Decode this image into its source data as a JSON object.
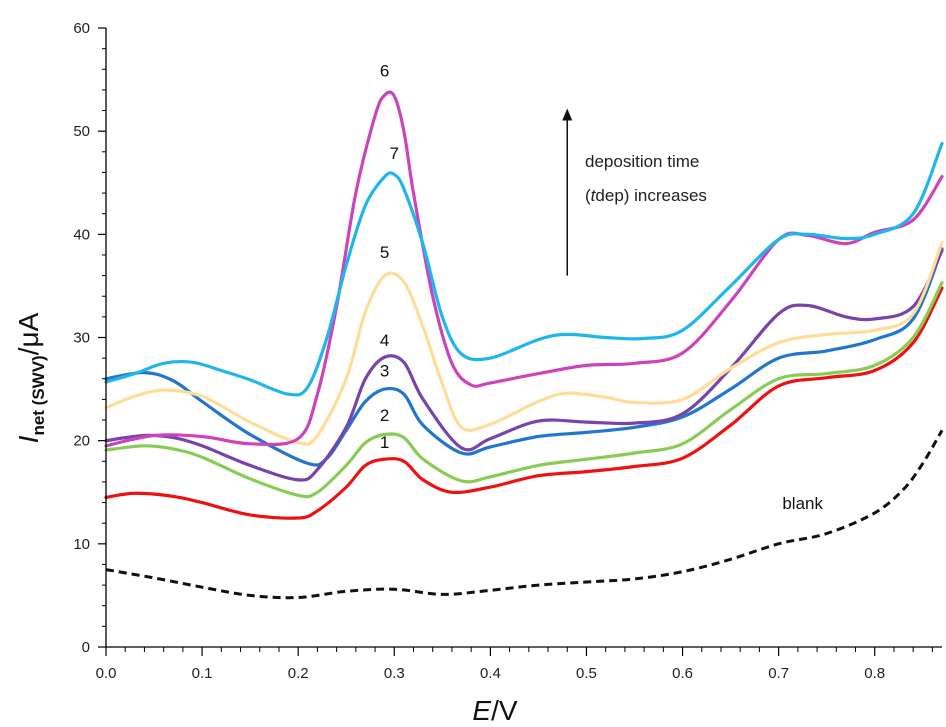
{
  "chart_data": {
    "type": "line",
    "xlabel_main": "E",
    "xlabel_unit": "/V",
    "ylabel_main": "I",
    "ylabel_sub": "net (SWV)",
    "ylabel_unit": "/μA",
    "xlim": [
      0.0,
      0.87
    ],
    "ylim": [
      0,
      60
    ],
    "xticks": [
      0.0,
      0.1,
      0.2,
      0.3,
      0.4,
      0.5,
      0.6,
      0.7,
      0.8
    ],
    "xtick_labels": [
      "0.0",
      "0.1",
      "0.2",
      "0.3",
      "0.4",
      "0.5",
      "0.6",
      "0.7",
      "0.8"
    ],
    "yticks": [
      0,
      10,
      20,
      30,
      40,
      50,
      60
    ],
    "ytick_labels": [
      "0",
      "10",
      "20",
      "30",
      "40",
      "50",
      "60"
    ],
    "grid": false,
    "annotation": {
      "line1": "deposition time",
      "line2_open": "(",
      "line2_italic": "t",
      "line2_rest": "dep) increases",
      "arrow": "up",
      "x": 0.48,
      "y_from": 36.0,
      "y_to": 52.0
    },
    "series": [
      {
        "name": "1",
        "color": "#ee1111",
        "style": "solid",
        "label": "1",
        "label_at": [
          0.29,
          19.3
        ],
        "x": [
          0.0,
          0.03,
          0.07,
          0.1,
          0.15,
          0.2,
          0.22,
          0.25,
          0.27,
          0.29,
          0.31,
          0.33,
          0.36,
          0.4,
          0.45,
          0.5,
          0.55,
          0.6,
          0.65,
          0.7,
          0.75,
          0.8,
          0.84,
          0.87
        ],
        "y": [
          14.5,
          14.9,
          14.6,
          14.0,
          12.8,
          12.5,
          13.2,
          15.5,
          17.6,
          18.2,
          18.0,
          16.2,
          15.0,
          15.5,
          16.6,
          17.0,
          17.5,
          18.3,
          21.5,
          25.3,
          26.1,
          26.8,
          29.5,
          34.8
        ]
      },
      {
        "name": "2",
        "color": "#88cc55",
        "style": "solid",
        "label": "2",
        "label_at": [
          0.29,
          21.9
        ],
        "x": [
          0.0,
          0.04,
          0.07,
          0.1,
          0.15,
          0.2,
          0.22,
          0.25,
          0.27,
          0.29,
          0.31,
          0.33,
          0.37,
          0.4,
          0.45,
          0.5,
          0.55,
          0.6,
          0.65,
          0.7,
          0.75,
          0.8,
          0.84,
          0.87
        ],
        "y": [
          19.1,
          19.5,
          19.2,
          18.4,
          16.3,
          14.7,
          15.0,
          17.6,
          19.8,
          20.6,
          20.3,
          18.2,
          16.1,
          16.5,
          17.6,
          18.2,
          18.8,
          19.7,
          23.0,
          26.0,
          26.5,
          27.3,
          30.0,
          35.3
        ]
      },
      {
        "name": "3",
        "color": "#2277cc",
        "style": "solid",
        "label": "3",
        "label_at": [
          0.29,
          26.2
        ],
        "x": [
          0.0,
          0.04,
          0.07,
          0.1,
          0.15,
          0.21,
          0.23,
          0.25,
          0.27,
          0.29,
          0.31,
          0.33,
          0.37,
          0.4,
          0.45,
          0.5,
          0.55,
          0.6,
          0.65,
          0.7,
          0.75,
          0.8,
          0.84,
          0.87
        ],
        "y": [
          26.0,
          26.6,
          25.8,
          23.8,
          20.6,
          17.8,
          18.3,
          21.0,
          23.8,
          25.0,
          24.5,
          21.5,
          18.8,
          19.4,
          20.4,
          20.8,
          21.3,
          22.3,
          25.0,
          28.0,
          28.7,
          29.8,
          31.8,
          38.6
        ]
      },
      {
        "name": "4",
        "color": "#7744aa",
        "style": "solid",
        "label": "4",
        "label_at": [
          0.29,
          29.2
        ],
        "x": [
          0.0,
          0.04,
          0.07,
          0.1,
          0.15,
          0.2,
          0.22,
          0.25,
          0.27,
          0.29,
          0.31,
          0.33,
          0.37,
          0.4,
          0.45,
          0.5,
          0.55,
          0.6,
          0.65,
          0.7,
          0.73,
          0.77,
          0.8,
          0.84,
          0.87
        ],
        "y": [
          20.0,
          20.5,
          20.3,
          19.5,
          17.6,
          16.2,
          17.2,
          21.3,
          26.0,
          28.1,
          27.6,
          24.0,
          19.3,
          20.2,
          21.9,
          21.8,
          21.7,
          22.6,
          27.0,
          32.3,
          33.1,
          32.0,
          31.8,
          33.0,
          38.4
        ]
      },
      {
        "name": "5",
        "color": "#ffdd99",
        "style": "solid",
        "label": "5",
        "label_at": [
          0.29,
          37.7
        ],
        "x": [
          0.0,
          0.03,
          0.06,
          0.1,
          0.15,
          0.2,
          0.22,
          0.25,
          0.27,
          0.29,
          0.31,
          0.33,
          0.35,
          0.37,
          0.4,
          0.45,
          0.48,
          0.52,
          0.55,
          0.6,
          0.65,
          0.7,
          0.75,
          0.8,
          0.84,
          0.87
        ],
        "y": [
          23.2,
          24.3,
          24.9,
          24.3,
          21.8,
          19.8,
          20.5,
          26.0,
          32.5,
          36.0,
          35.4,
          31.0,
          25.5,
          21.3,
          21.6,
          23.8,
          24.6,
          24.2,
          23.7,
          24.0,
          27.0,
          29.5,
          30.3,
          30.7,
          32.3,
          39.2
        ]
      },
      {
        "name": "6",
        "color": "#cc44bb",
        "style": "solid",
        "label": "6",
        "label_at": [
          0.29,
          55.3
        ],
        "x": [
          0.0,
          0.05,
          0.1,
          0.15,
          0.2,
          0.22,
          0.24,
          0.26,
          0.28,
          0.29,
          0.3,
          0.31,
          0.32,
          0.34,
          0.36,
          0.38,
          0.4,
          0.45,
          0.5,
          0.55,
          0.6,
          0.65,
          0.7,
          0.73,
          0.77,
          0.8,
          0.84,
          0.87
        ],
        "y": [
          19.5,
          20.5,
          20.4,
          19.7,
          20.2,
          24.5,
          33.0,
          44.0,
          51.5,
          53.5,
          53.4,
          50.0,
          44.0,
          34.0,
          27.5,
          25.4,
          25.6,
          26.5,
          27.3,
          27.5,
          28.5,
          33.5,
          39.5,
          39.9,
          39.1,
          40.2,
          41.4,
          45.6
        ]
      },
      {
        "name": "7",
        "color": "#1eb6ec",
        "style": "solid",
        "label": "7",
        "label_at": [
          0.3,
          47.3
        ],
        "x": [
          0.0,
          0.03,
          0.06,
          0.09,
          0.12,
          0.15,
          0.19,
          0.21,
          0.23,
          0.25,
          0.27,
          0.29,
          0.3,
          0.31,
          0.33,
          0.35,
          0.37,
          0.4,
          0.45,
          0.48,
          0.52,
          0.56,
          0.6,
          0.65,
          0.7,
          0.73,
          0.77,
          0.8,
          0.84,
          0.87
        ],
        "y": [
          25.7,
          26.5,
          27.5,
          27.6,
          26.8,
          25.9,
          24.5,
          25.2,
          30.0,
          37.0,
          42.8,
          45.6,
          45.8,
          44.4,
          39.0,
          32.0,
          28.4,
          28.0,
          29.8,
          30.3,
          30.0,
          29.9,
          30.7,
          35.0,
          39.5,
          40.0,
          39.6,
          40.0,
          42.0,
          48.8
        ]
      },
      {
        "name": "blank",
        "color": "#111111",
        "style": "dashed",
        "label": "blank",
        "label_at": [
          0.725,
          13.4
        ],
        "x": [
          0.0,
          0.05,
          0.1,
          0.15,
          0.2,
          0.25,
          0.3,
          0.35,
          0.4,
          0.45,
          0.5,
          0.55,
          0.6,
          0.65,
          0.7,
          0.75,
          0.8,
          0.83,
          0.85,
          0.87
        ],
        "y": [
          7.5,
          6.7,
          5.8,
          5.0,
          4.8,
          5.4,
          5.6,
          5.1,
          5.5,
          6.0,
          6.3,
          6.6,
          7.3,
          8.5,
          10.0,
          11.0,
          13.0,
          15.3,
          17.8,
          21.0
        ]
      }
    ]
  }
}
